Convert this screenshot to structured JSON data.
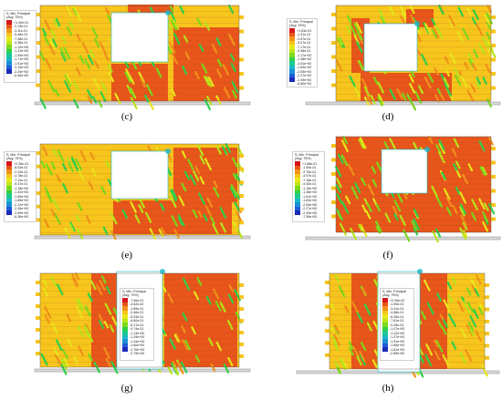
{
  "palette": [
    "#d8161c",
    "#e8561b",
    "#f2921a",
    "#f7c51c",
    "#e9e71a",
    "#b8e61a",
    "#7cd91c",
    "#2fd14a",
    "#1bc98f",
    "#1bb7c7",
    "#1b8fd8",
    "#1e5bd6",
    "#1d2ab8"
  ],
  "panels": [
    {
      "id": "c",
      "caption": "(c)",
      "legend": {
        "title": "S, Min. Principal",
        "subtitle": "(Avg: 75%)",
        "values": [
          "+1.40e-01",
          "-2.13e-01",
          "-3.11e-01",
          "-5.48e-01",
          "-7.38e-01",
          "-9.38e-01",
          "-1.12e+00",
          "-1.31e+00",
          "-1.49e+00",
          "-1.71e+00",
          "-1.91e+00",
          "-2.10e+00",
          "-2.29e+00",
          "-6.46e+00"
        ]
      }
    },
    {
      "id": "d",
      "caption": "(d)",
      "legend": {
        "title": "S, Min. Principal",
        "subtitle": "(Avg: 75%)",
        "values": [
          "+1.53e-01",
          "-1.31e-01",
          "-2.87e-01",
          "-5.07e-01",
          "-7.17e-01",
          "-9.48e-01",
          "-1.17e+00",
          "-1.38e+00",
          "-1.61e+00",
          "-1.83e+00",
          "-2.05e+00",
          "-2.27e+00",
          "-2.49e+00",
          "-6.80e+00"
        ]
      }
    },
    {
      "id": "e",
      "caption": "(e)",
      "legend": {
        "title": "S, Min. Principal",
        "subtitle": "(Avg: 75%)",
        "values": [
          "+2.26e-01",
          "-8.03e-02",
          "-2.43e-01",
          "-4.78e-01",
          "-7.12e-01",
          "-9.47e-01",
          "-1.18e+00",
          "-1.42e+00",
          "-1.65e+00",
          "-1.89e+00",
          "-2.12e+00",
          "-2.36e+00",
          "-2.59e+00",
          "-6.36e+00"
        ]
      }
    },
    {
      "id": "f",
      "caption": "(f)",
      "legend": {
        "title": "S, Min. Principal",
        "subtitle": "(Avg: 75%)",
        "values": [
          "+1.68e-01",
          "-1.59e-01",
          "-2.75e-01",
          "-4.97e-01",
          "-7.18e-01",
          "-9.40e-01",
          "-1.16e+00",
          "-1.38e+00",
          "-1.61e+00",
          "-1.83e+00",
          "-2.05e+00",
          "-2.27e+00",
          "-2.49e+00",
          "-7.36e+00"
        ]
      }
    },
    {
      "id": "g",
      "caption": "(g)",
      "legend": {
        "title": "S, Min. Principal",
        "subtitle": "(Avg: 75%)",
        "values": [
          "-7.96e-01",
          "-3.82e-02",
          "-1.89e-01",
          "-3.46e-01",
          "-5.03e-01",
          "-6.60e-01",
          "-8.17e-01",
          "-9.74e-01",
          "-1.13e+00",
          "-1.29e+00",
          "-1.44e+00",
          "-1.60e+00",
          "-1.76e+00",
          "-2.79e+00"
        ]
      }
    },
    {
      "id": "h",
      "caption": "(h)",
      "legend": {
        "title": "S, Min. Principal",
        "subtitle": "(Avg: 75%)",
        "values": [
          "+2.05e-02",
          "-1.95e-01",
          "-3.41e-01",
          "-4.88e-01",
          "-6.35e-01",
          "-7.81e-01",
          "-9.28e-01",
          "-1.07e+00",
          "-1.22e+00",
          "-1.37e+00",
          "-1.51e+00",
          "-1.66e+00",
          "-1.81e+00",
          "-2.85e+00"
        ]
      }
    }
  ]
}
